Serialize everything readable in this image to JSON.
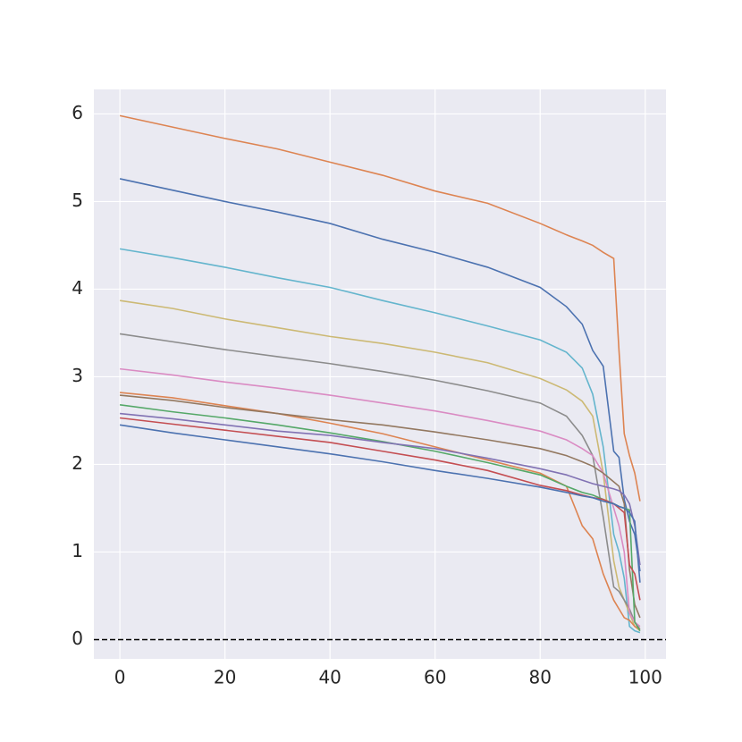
{
  "chart_data": {
    "type": "line",
    "x": [
      0,
      10,
      20,
      30,
      40,
      50,
      60,
      70,
      80,
      85,
      88,
      90,
      92,
      94,
      95,
      96,
      97,
      98,
      99
    ],
    "series": [
      {
        "color": "#dd8452",
        "values": [
          5.98,
          5.85,
          5.72,
          5.6,
          5.45,
          5.3,
          5.12,
          4.98,
          4.75,
          4.62,
          4.55,
          4.5,
          4.42,
          4.35,
          3.3,
          2.35,
          2.1,
          1.9,
          1.58
        ]
      },
      {
        "color": "#4c72b0",
        "values": [
          5.26,
          5.13,
          5.0,
          4.88,
          4.75,
          4.57,
          4.42,
          4.25,
          4.02,
          3.8,
          3.6,
          3.3,
          3.12,
          2.15,
          2.08,
          1.6,
          1.35,
          1.2,
          0.78
        ]
      },
      {
        "color": "#64b5cd",
        "values": [
          4.46,
          4.36,
          4.25,
          4.13,
          4.02,
          3.87,
          3.73,
          3.58,
          3.42,
          3.28,
          3.1,
          2.8,
          2.2,
          1.2,
          1.0,
          0.7,
          0.15,
          0.1,
          0.08
        ]
      },
      {
        "color": "#ccb974",
        "values": [
          3.87,
          3.78,
          3.66,
          3.56,
          3.46,
          3.38,
          3.28,
          3.16,
          2.98,
          2.85,
          2.72,
          2.55,
          1.9,
          0.9,
          0.6,
          0.45,
          0.3,
          0.15,
          0.1
        ]
      },
      {
        "color": "#8c8c8c",
        "values": [
          3.49,
          3.4,
          3.31,
          3.23,
          3.15,
          3.06,
          2.96,
          2.84,
          2.7,
          2.55,
          2.33,
          2.1,
          1.4,
          0.6,
          0.55,
          0.45,
          0.35,
          0.2,
          0.12
        ]
      },
      {
        "color": "#da8bc3",
        "values": [
          3.09,
          3.02,
          2.94,
          2.87,
          2.79,
          2.7,
          2.61,
          2.5,
          2.38,
          2.28,
          2.18,
          2.1,
          1.9,
          1.5,
          1.3,
          1.0,
          0.3,
          0.2,
          0.15
        ]
      },
      {
        "color": "#dd8452",
        "values": [
          2.82,
          2.76,
          2.67,
          2.58,
          2.47,
          2.35,
          2.2,
          2.05,
          1.9,
          1.75,
          1.3,
          1.15,
          0.75,
          0.45,
          0.35,
          0.25,
          0.22,
          0.15,
          0.12
        ]
      },
      {
        "color": "#937860",
        "values": [
          2.79,
          2.73,
          2.65,
          2.58,
          2.51,
          2.45,
          2.37,
          2.28,
          2.18,
          2.1,
          2.03,
          1.98,
          1.9,
          1.8,
          1.75,
          1.55,
          0.8,
          0.4,
          0.25
        ]
      },
      {
        "color": "#55a868",
        "values": [
          2.68,
          2.6,
          2.53,
          2.45,
          2.36,
          2.26,
          2.15,
          2.02,
          1.88,
          1.75,
          1.68,
          1.65,
          1.6,
          1.55,
          1.52,
          1.5,
          1.48,
          0.2,
          0.1
        ]
      },
      {
        "color": "#8172b3",
        "values": [
          2.58,
          2.52,
          2.45,
          2.38,
          2.33,
          2.25,
          2.18,
          2.07,
          1.95,
          1.88,
          1.82,
          1.78,
          1.75,
          1.72,
          1.7,
          1.65,
          1.55,
          1.3,
          0.85
        ]
      },
      {
        "color": "#c44e52",
        "values": [
          2.53,
          2.46,
          2.39,
          2.32,
          2.25,
          2.15,
          2.05,
          1.93,
          1.76,
          1.7,
          1.65,
          1.62,
          1.6,
          1.55,
          1.5,
          1.45,
          0.85,
          0.75,
          0.45
        ]
      },
      {
        "color": "#4c72b0",
        "values": [
          2.45,
          2.36,
          2.28,
          2.2,
          2.12,
          2.03,
          1.93,
          1.84,
          1.74,
          1.68,
          1.64,
          1.62,
          1.58,
          1.55,
          1.52,
          1.5,
          1.45,
          1.35,
          0.65
        ]
      }
    ],
    "xlim": [
      -4.95,
      103.95
    ],
    "xticks": [
      0,
      20,
      40,
      60,
      80,
      100
    ],
    "ylim": [
      -0.22,
      6.28
    ],
    "yticks": [
      0,
      1,
      2,
      3,
      4,
      5,
      6
    ],
    "hline": 0,
    "grid": true
  }
}
